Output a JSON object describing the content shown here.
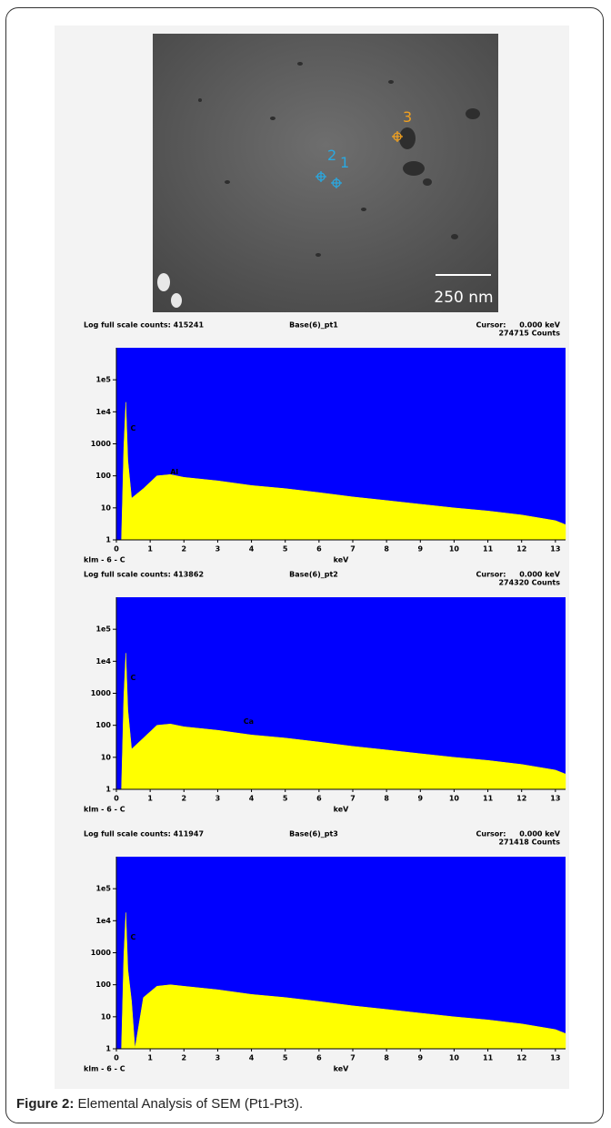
{
  "sem_image": {
    "markers": [
      "2",
      "1",
      "3"
    ],
    "scale_bar": "250 nm"
  },
  "chart_data": [
    {
      "type": "area",
      "header_left": "Log full scale counts: 415241",
      "title": "Base(6)_pt1",
      "cursor_label": "Cursor:",
      "cursor_value": "0.000 keV",
      "counts": "274715 Counts",
      "footer": "klm - 6 - C",
      "x_label": "keV",
      "log_scale": true,
      "color": "#ffff00",
      "background": "#0000ff",
      "xlim": [
        0,
        13.3
      ],
      "xticks": [
        0,
        1,
        2,
        3,
        4,
        5,
        6,
        7,
        8,
        9,
        10,
        11,
        12,
        13
      ],
      "ylim": [
        1,
        1000000
      ],
      "yticks": [
        1,
        10,
        100,
        1000,
        {
          "value": 10000,
          "label": "1e4"
        },
        {
          "value": 100000,
          "label": "1e5"
        }
      ],
      "x": [
        0.15,
        0.22,
        0.28,
        0.34,
        0.45,
        0.8,
        1.2,
        1.6,
        2,
        3,
        4,
        5,
        6,
        7,
        8,
        9,
        10,
        11,
        12,
        13,
        13.3
      ],
      "values": [
        1,
        800,
        20000,
        300,
        20,
        40,
        100,
        110,
        90,
        70,
        50,
        40,
        30,
        22,
        17,
        13,
        10,
        8,
        6,
        4,
        3
      ],
      "annotations": [
        {
          "text": "C",
          "x": 0.28,
          "y": 3000
        },
        {
          "text": "Al",
          "x": 1.5,
          "y": 130
        }
      ]
    },
    {
      "type": "area",
      "header_left": "Log full scale counts: 413862",
      "title": "Base(6)_pt2",
      "cursor_label": "Cursor:",
      "cursor_value": "0.000 keV",
      "counts": "274320 Counts",
      "footer": "klm - 6 - C",
      "x_label": "keV",
      "log_scale": true,
      "color": "#ffff00",
      "background": "#0000ff",
      "xlim": [
        0,
        13.3
      ],
      "xticks": [
        0,
        1,
        2,
        3,
        4,
        5,
        6,
        7,
        8,
        9,
        10,
        11,
        12,
        13
      ],
      "ylim": [
        1,
        1000000
      ],
      "yticks": [
        1,
        10,
        100,
        1000,
        {
          "value": 10000,
          "label": "1e4"
        },
        {
          "value": 100000,
          "label": "1e5"
        }
      ],
      "x": [
        0.15,
        0.22,
        0.28,
        0.34,
        0.45,
        0.8,
        1.2,
        1.6,
        2,
        3,
        4,
        5,
        6,
        7,
        8,
        9,
        10,
        11,
        12,
        13,
        13.3
      ],
      "values": [
        1,
        800,
        18000,
        300,
        18,
        40,
        100,
        110,
        90,
        70,
        50,
        40,
        30,
        22,
        17,
        13,
        10,
        8,
        6,
        4,
        3
      ],
      "annotations": [
        {
          "text": "C",
          "x": 0.28,
          "y": 3000
        },
        {
          "text": "Ca",
          "x": 3.7,
          "y": 130
        }
      ]
    },
    {
      "type": "area",
      "header_left": "Log full scale counts: 411947",
      "title": "Base(6)_pt3",
      "cursor_label": "Cursor:",
      "cursor_value": "0.000 keV",
      "counts": "271418 Counts",
      "footer": "klm - 6 - C",
      "x_label": "keV",
      "log_scale": true,
      "color": "#ffff00",
      "background": "#0000ff",
      "xlim": [
        0,
        13.3
      ],
      "xticks": [
        0,
        1,
        2,
        3,
        4,
        5,
        6,
        7,
        8,
        9,
        10,
        11,
        12,
        13
      ],
      "ylim": [
        1,
        1000000
      ],
      "yticks": [
        1,
        10,
        100,
        1000,
        {
          "value": 10000,
          "label": "1e4"
        },
        {
          "value": 100000,
          "label": "1e5"
        }
      ],
      "x": [
        0.15,
        0.22,
        0.28,
        0.34,
        0.45,
        0.55,
        0.8,
        1.2,
        1.6,
        2,
        3,
        4,
        5,
        6,
        7,
        8,
        9,
        10,
        11,
        12,
        13,
        13.3
      ],
      "values": [
        1,
        800,
        18000,
        300,
        30,
        1,
        40,
        90,
        100,
        90,
        70,
        50,
        40,
        30,
        22,
        17,
        13,
        10,
        8,
        6,
        4,
        3
      ],
      "annotations": [
        {
          "text": "C",
          "x": 0.28,
          "y": 3000
        }
      ]
    }
  ],
  "caption": {
    "label": "Figure 2:",
    "text": "Elemental Analysis of SEM (Pt1-Pt3)."
  }
}
